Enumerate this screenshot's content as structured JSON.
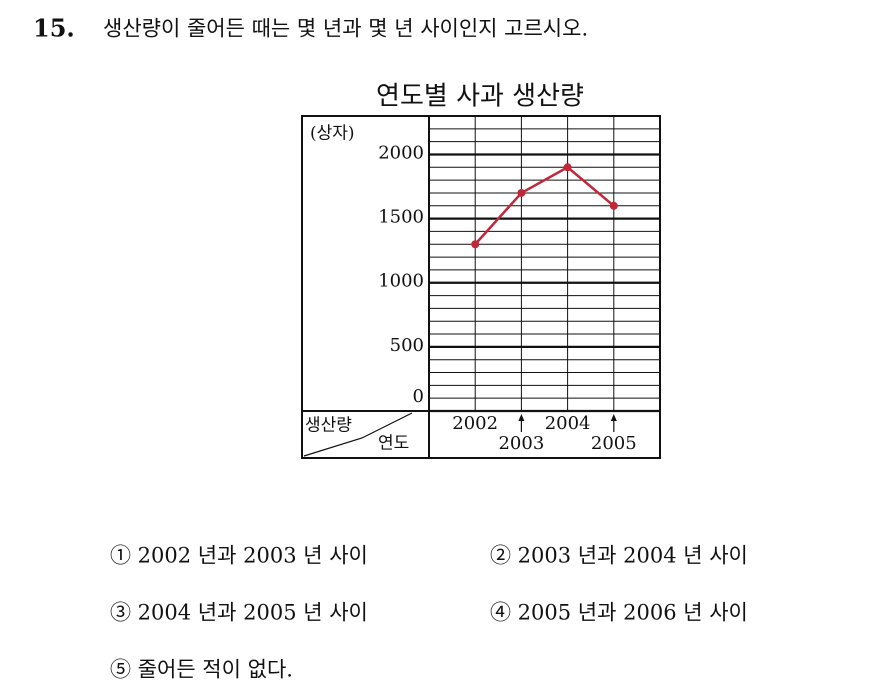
{
  "question": {
    "number": "15.",
    "text": "생산량이 줄어든 때는 몇 년과 몇 년 사이인지 고르시오."
  },
  "chart_data": {
    "type": "line",
    "title": "연도별 사과 생산량",
    "y_label": "(상자)",
    "corner_top": "생산량",
    "corner_bottom": "연도",
    "categories": [
      "2002",
      "2003",
      "2004",
      "2005"
    ],
    "series": [
      {
        "color": "#c0283a",
        "values": [
          1300,
          1700,
          1900,
          1600
        ]
      }
    ],
    "ylim": [
      0,
      2300
    ],
    "yticks": [
      0,
      500,
      1000,
      1500,
      2000
    ],
    "grid": true
  },
  "choices": [
    "① 2002 년과 2003 년 사이",
    "② 2003 년과 2004 년 사이",
    "③ 2004 년과 2005 년 사이",
    "④ 2005 년과 2006 년 사이",
    "⑤ 줄어든 적이 없다."
  ]
}
